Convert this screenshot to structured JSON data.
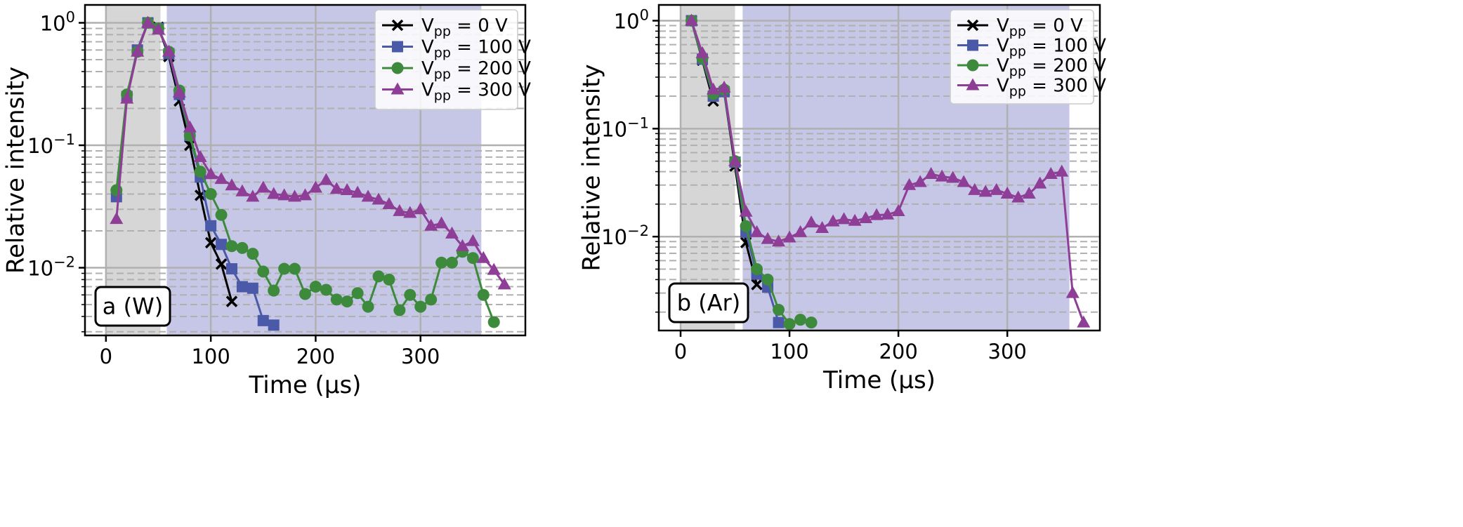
{
  "chart_data": [
    {
      "type": "line",
      "panel_label": "a (W)",
      "xlabel": "Time (µs)",
      "ylabel": "Relative intensity",
      "xlim": [
        -20,
        400
      ],
      "ylim": [
        0.0028,
        1.4
      ],
      "yscale": "log",
      "grid": true,
      "legend_position": "top-right",
      "x_ticks": [
        0,
        100,
        200,
        300
      ],
      "y_ticks": [
        1,
        0.1,
        0.01
      ],
      "shaded_regions": [
        {
          "x0": 0,
          "x1": 52,
          "color": "#d6d6d6"
        },
        {
          "x0": 58,
          "x1": 358,
          "color": "#c6c6e6"
        }
      ],
      "series": [
        {
          "name": "Vpp = 0 V",
          "name_base": "V",
          "name_sub": "pp",
          "name_rest": " = 0 V",
          "color": "#000000",
          "marker": "x",
          "x": [
            10,
            20,
            30,
            40,
            50,
            60,
            70,
            80,
            90,
            100,
            110,
            120
          ],
          "y": [
            0.04,
            0.25,
            0.6,
            1.0,
            0.92,
            0.53,
            0.23,
            0.1,
            0.039,
            0.016,
            0.0107,
            0.0053
          ]
        },
        {
          "name": "Vpp = 100 V",
          "name_base": "V",
          "name_sub": "pp",
          "name_rest": " = 100 V",
          "color": "#4b5aa8",
          "marker": "square",
          "x": [
            10,
            20,
            30,
            40,
            50,
            60,
            70,
            80,
            90,
            100,
            110,
            120,
            130,
            140,
            150,
            160
          ],
          "y": [
            0.038,
            0.25,
            0.6,
            1.0,
            0.9,
            0.56,
            0.26,
            0.12,
            0.055,
            0.022,
            0.0155,
            0.0098,
            0.007,
            0.0068,
            0.0037,
            0.0034
          ]
        },
        {
          "name": "Vpp = 200 V",
          "name_base": "V",
          "name_sub": "pp",
          "name_rest": " = 200 V",
          "color": "#3d8a3d",
          "marker": "circle",
          "x": [
            10,
            20,
            30,
            40,
            50,
            60,
            70,
            80,
            90,
            100,
            110,
            120,
            130,
            140,
            150,
            160,
            170,
            180,
            190,
            200,
            210,
            220,
            230,
            240,
            250,
            260,
            270,
            280,
            290,
            300,
            310,
            320,
            330,
            340,
            350,
            360,
            370
          ],
          "y": [
            0.043,
            0.26,
            0.58,
            1.0,
            0.9,
            0.58,
            0.28,
            0.12,
            0.061,
            0.04,
            0.027,
            0.015,
            0.0145,
            0.013,
            0.0093,
            0.0065,
            0.0098,
            0.0098,
            0.0061,
            0.007,
            0.0066,
            0.0055,
            0.0053,
            0.0062,
            0.0048,
            0.0085,
            0.008,
            0.0045,
            0.006,
            0.0048,
            0.0055,
            0.011,
            0.011,
            0.0135,
            0.012,
            0.006,
            0.0036
          ]
        },
        {
          "name": "Vpp = 300 V",
          "name_base": "V",
          "name_sub": "pp",
          "name_rest": " = 300 V",
          "color": "#8e3e96",
          "marker": "triangle",
          "x": [
            10,
            20,
            30,
            40,
            50,
            60,
            70,
            80,
            90,
            100,
            110,
            120,
            130,
            140,
            150,
            160,
            170,
            180,
            190,
            200,
            210,
            220,
            230,
            240,
            250,
            260,
            270,
            280,
            290,
            300,
            310,
            320,
            330,
            340,
            350,
            360,
            370,
            380
          ],
          "y": [
            0.025,
            0.24,
            0.58,
            1.0,
            0.88,
            0.58,
            0.27,
            0.14,
            0.08,
            0.058,
            0.053,
            0.047,
            0.042,
            0.038,
            0.045,
            0.04,
            0.039,
            0.038,
            0.039,
            0.045,
            0.052,
            0.044,
            0.043,
            0.041,
            0.038,
            0.036,
            0.033,
            0.029,
            0.028,
            0.03,
            0.022,
            0.023,
            0.019,
            0.015,
            0.0165,
            0.012,
            0.0096,
            0.0073
          ]
        }
      ]
    },
    {
      "type": "line",
      "panel_label": "b (Ar)",
      "xlabel": "Time (µs)",
      "ylabel": "Relative intensity",
      "xlim": [
        -20,
        385
      ],
      "ylim": [
        0.00135,
        1.4
      ],
      "yscale": "log",
      "grid": true,
      "legend_position": "top-right",
      "x_ticks": [
        0,
        100,
        200,
        300
      ],
      "y_ticks": [
        1,
        0.1,
        0.01
      ],
      "shaded_regions": [
        {
          "x0": 0,
          "x1": 50,
          "color": "#d6d6d6"
        },
        {
          "x0": 57,
          "x1": 357,
          "color": "#c6c6e6"
        }
      ],
      "series": [
        {
          "name": "Vpp = 0 V",
          "name_base": "V",
          "name_sub": "pp",
          "name_rest": " = 0 V",
          "color": "#000000",
          "marker": "x",
          "x": [
            10,
            20,
            30,
            40,
            50,
            60,
            70
          ],
          "y": [
            1.0,
            0.43,
            0.18,
            0.22,
            0.045,
            0.0088,
            0.0036
          ]
        },
        {
          "name": "Vpp = 100 V",
          "name_base": "V",
          "name_sub": "pp",
          "name_rest": " = 100 V",
          "color": "#4b5aa8",
          "marker": "square",
          "x": [
            10,
            20,
            30,
            40,
            50,
            60,
            70,
            80,
            90
          ],
          "y": [
            1.0,
            0.44,
            0.2,
            0.22,
            0.049,
            0.011,
            0.0045,
            0.0034,
            0.0016
          ]
        },
        {
          "name": "Vpp = 200 V",
          "name_base": "V",
          "name_sub": "pp",
          "name_rest": " = 200 V",
          "color": "#3d8a3d",
          "marker": "circle",
          "x": [
            10,
            20,
            30,
            40,
            50,
            60,
            70,
            80,
            90,
            100,
            110,
            120
          ],
          "y": [
            1.0,
            0.45,
            0.21,
            0.23,
            0.05,
            0.0125,
            0.005,
            0.004,
            0.0021,
            0.00155,
            0.0017,
            0.0016
          ]
        },
        {
          "name": "Vpp = 300 V",
          "name_base": "V",
          "name_sub": "pp",
          "name_rest": " = 300 V",
          "color": "#8e3e96",
          "marker": "triangle",
          "x": [
            10,
            20,
            30,
            40,
            50,
            60,
            70,
            80,
            90,
            100,
            110,
            120,
            130,
            140,
            150,
            160,
            170,
            180,
            190,
            200,
            210,
            220,
            230,
            240,
            250,
            260,
            270,
            280,
            290,
            300,
            310,
            320,
            330,
            340,
            350,
            360,
            370
          ],
          "y": [
            1.0,
            0.5,
            0.23,
            0.24,
            0.05,
            0.017,
            0.011,
            0.0095,
            0.009,
            0.0098,
            0.011,
            0.0135,
            0.012,
            0.0138,
            0.0145,
            0.014,
            0.0148,
            0.0158,
            0.016,
            0.0172,
            0.03,
            0.032,
            0.038,
            0.036,
            0.035,
            0.032,
            0.027,
            0.026,
            0.027,
            0.025,
            0.023,
            0.025,
            0.031,
            0.038,
            0.04,
            0.003,
            0.0016
          ]
        }
      ]
    }
  ]
}
